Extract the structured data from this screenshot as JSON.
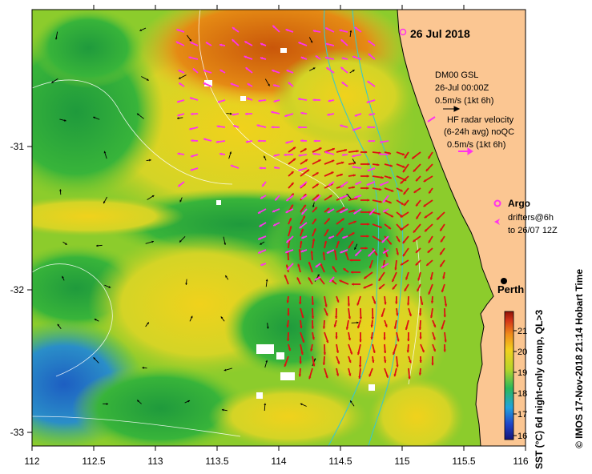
{
  "map": {
    "date_label": "26 Jul 2018",
    "lon_ticks": [
      "112",
      "112.5",
      "113",
      "113.5",
      "114",
      "114.5",
      "115",
      "115.5",
      "116"
    ],
    "lat_ticks": [
      "-31",
      "-32",
      "-33"
    ],
    "lon_range": [
      112,
      116
    ],
    "lat_range": [
      -33.1,
      -30.1
    ],
    "city": {
      "name": "Perth",
      "lon": 115.86,
      "lat": -31.95
    }
  },
  "legend": {
    "gsl_line1": "DM00 GSL",
    "gsl_line2": "26-Jul 00:00Z",
    "gsl_line3": "0.5m/s (1kt 6h)",
    "hf_line1": "HF radar velocity",
    "hf_line2": "(6-24h avg) noQC",
    "hf_line3": "0.5m/s (1kt 6h)",
    "argo_label": "Argo",
    "drifters_line1": "drifters@6h",
    "drifters_line2": "to 26/07 12Z"
  },
  "colorbar": {
    "ticks": [
      "16",
      "17",
      "18",
      "19",
      "20",
      "21"
    ],
    "range": [
      15.8,
      21.6
    ],
    "label": "SST (°C) 6d night-only comp, QL>3"
  },
  "credit": "© IMOS 17-Nov-2018 21:14 Hobart Time",
  "colors": {
    "land": "#fbc692",
    "current_vectors": "#dd1111",
    "radar_vectors": "#ff33ee",
    "gsl_vectors": "#000000",
    "isobath": "#3cc8c8",
    "sst_warm": "#d15a08",
    "sst_mid": "#31b63a",
    "sst_cool": "#1668c4"
  },
  "icons": {
    "argo_marker": "circle-marker-icon",
    "city_marker": "filled-dot-icon"
  }
}
